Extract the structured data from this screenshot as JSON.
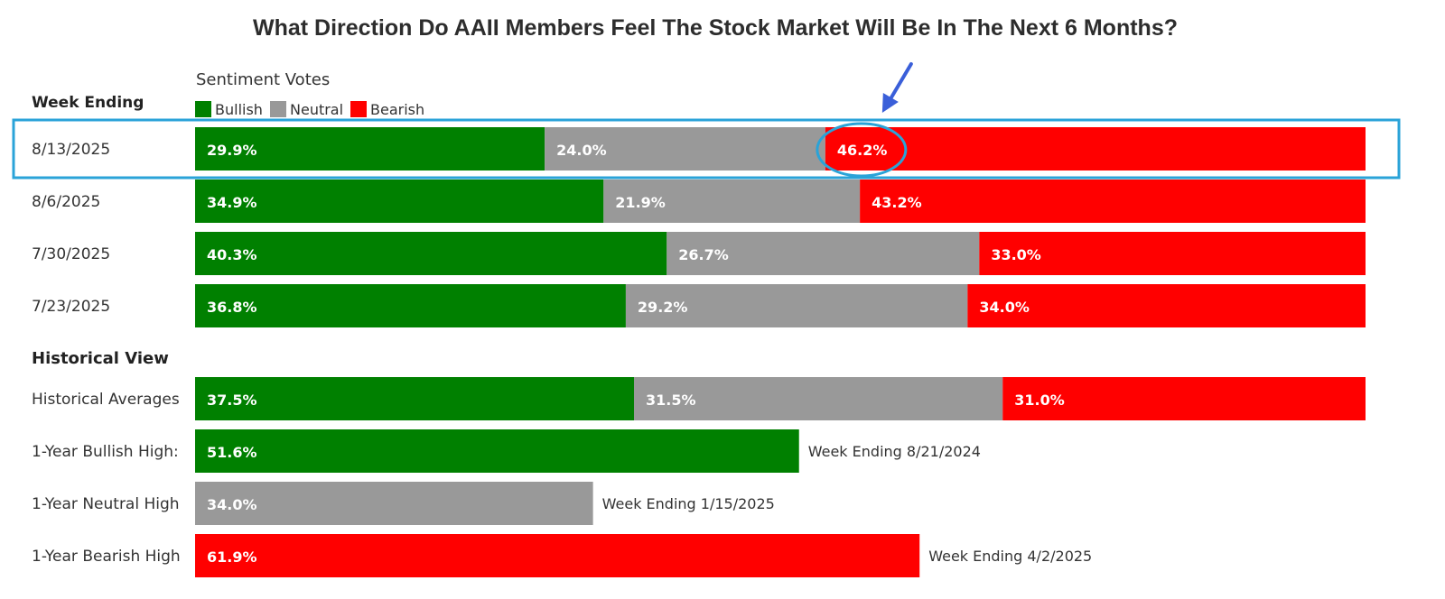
{
  "chart_data": {
    "type": "bar",
    "orientation": "horizontal-stacked",
    "title": "What Direction Do AAII Members Feel The Stock Market Will Be In The Next 6 Months?",
    "week_header": "Week Ending",
    "legend_title": "Sentiment Votes",
    "legend": [
      {
        "name": "Bullish",
        "color": "#008000"
      },
      {
        "name": "Neutral",
        "color": "#999999"
      },
      {
        "name": "Bearish",
        "color": "#ff0000"
      }
    ],
    "historical_header": "Historical View",
    "weekly": [
      {
        "label": "8/13/2025",
        "values": [
          29.9,
          24.0,
          46.2
        ],
        "texts": [
          "29.9%",
          "24.0%",
          "46.2%"
        ],
        "highlighted": true
      },
      {
        "label": "8/6/2025",
        "values": [
          34.9,
          21.9,
          43.2
        ],
        "texts": [
          "34.9%",
          "21.9%",
          "43.2%"
        ]
      },
      {
        "label": "7/30/2025",
        "values": [
          40.3,
          26.7,
          33.0
        ],
        "texts": [
          "40.3%",
          "26.7%",
          "33.0%"
        ]
      },
      {
        "label": "7/23/2025",
        "values": [
          36.8,
          29.2,
          34.0
        ],
        "texts": [
          "36.8%",
          "29.2%",
          "34.0%"
        ]
      }
    ],
    "historical": [
      {
        "label": "Historical Averages",
        "values": [
          37.5,
          31.5,
          31.0
        ],
        "texts": [
          "37.5%",
          "31.5%",
          "31.0%"
        ]
      }
    ],
    "highs": [
      {
        "label": "1-Year Bullish High:",
        "value": 51.6,
        "text": "51.6%",
        "series": "Bullish",
        "note": "Week Ending 8/21/2024"
      },
      {
        "label": "1-Year Neutral High",
        "value": 34.0,
        "text": "34.0%",
        "series": "Neutral",
        "note": "Week Ending 1/15/2025"
      },
      {
        "label": "1-Year Bearish High",
        "value": 61.9,
        "text": "61.9%",
        "series": "Bearish",
        "note": "Week Ending 4/2/2025"
      }
    ],
    "annotation_color": "#2aa3d8",
    "arrow_color": "#3a5fd9"
  }
}
